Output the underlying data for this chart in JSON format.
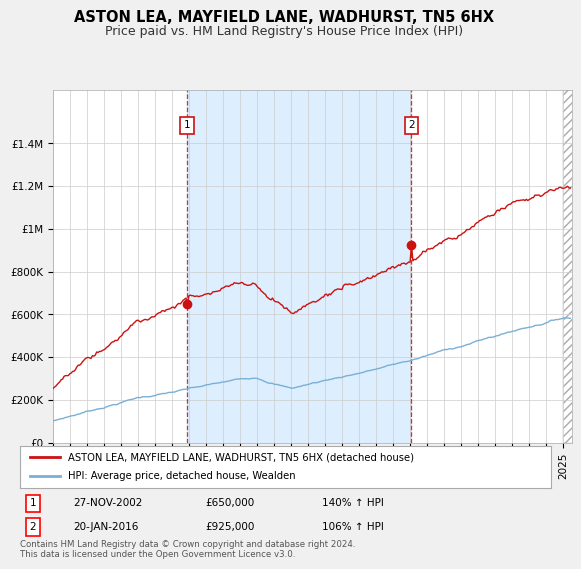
{
  "title": "ASTON LEA, MAYFIELD LANE, WADHURST, TN5 6HX",
  "subtitle": "Price paid vs. HM Land Registry's House Price Index (HPI)",
  "background_color": "#f0f0f0",
  "plot_bg_color": "#ffffff",
  "ylim": [
    0,
    1650000
  ],
  "yticks": [
    0,
    200000,
    400000,
    600000,
    800000,
    1000000,
    1200000,
    1400000
  ],
  "ytick_labels": [
    "£0",
    "£200K",
    "£400K",
    "£600K",
    "£800K",
    "£1M",
    "£1.2M",
    "£1.4M"
  ],
  "hpi_color": "#7ab0d4",
  "price_color": "#cc1111",
  "vline_color": "#cc1111",
  "shade_color": "#ddeeff",
  "sale1_date": "27-NOV-2002",
  "sale1_price": 650000,
  "sale1_hpi_pct": "140%",
  "sale1_year": 2002.917,
  "sale2_date": "20-JAN-2016",
  "sale2_price": 925000,
  "sale2_hpi_pct": "106%",
  "sale2_year": 2016.083,
  "legend_label_price": "ASTON LEA, MAYFIELD LANE, WADHURST, TN5 6HX (detached house)",
  "legend_label_hpi": "HPI: Average price, detached house, Wealden",
  "footer": "Contains HM Land Registry data © Crown copyright and database right 2024.\nThis data is licensed under the Open Government Licence v3.0.",
  "xmin": 1995.0,
  "xmax": 2025.5,
  "hatch_start": 2025.0,
  "title_fontsize": 10.5,
  "subtitle_fontsize": 9,
  "tick_fontsize": 7.5
}
